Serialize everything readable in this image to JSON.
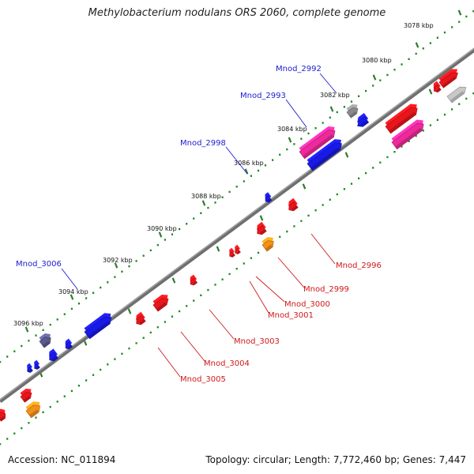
{
  "map": {
    "title": "Methylobacterium nodulans ORS 2060, complete genome",
    "accession": "Accession: NC_011894",
    "summary": "Topology: circular; Length: 7,772,460 bp; Genes: 7,447"
  },
  "scale_labels": [
    "3078 kbp",
    "3080 kbp",
    "3082 kbp",
    "3084 kbp",
    "3086 kbp",
    "3088 kbp",
    "3090 kbp",
    "3092 kbp",
    "3094 kbp",
    "3096 kbp"
  ],
  "gene_labels": {
    "forward": [
      "Mnod_2992",
      "Mnod_2993",
      "Mnod_2998",
      "Mnod_3006"
    ],
    "reverse": [
      "Mnod_2996",
      "Mnod_2999",
      "Mnod_3000",
      "Mnod_3001",
      "Mnod_3003",
      "Mnod_3004",
      "Mnod_3005"
    ]
  },
  "colors": {
    "backbone": "#7a7a7a",
    "tick_dots": "#1a8a1a",
    "tick_major": "#2e7d2e",
    "forward_label": "#1c1ccf",
    "reverse_label": "#d01818",
    "gene_red": "#e8161c",
    "gene_blue": "#1a1ae6",
    "gene_magenta": "#ee2a9a",
    "gene_orange": "#f39019",
    "gene_gray": "#8a8a8a",
    "gene_lightgray": "#c8c8c8",
    "gene_slate": "#5a5a8c"
  }
}
